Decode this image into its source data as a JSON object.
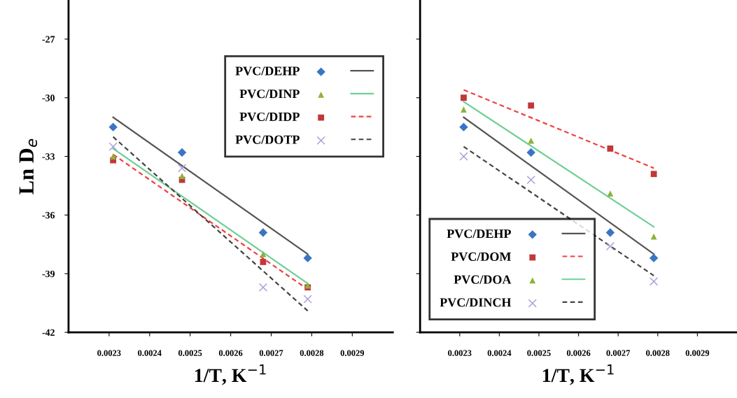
{
  "chart_data": [
    {
      "type": "scatter",
      "xlabel": "1/T, K$^{−1}$",
      "ylabel": "Ln D$_{e}$",
      "xlim": [
        0.0022,
        0.003
      ],
      "ylim": [
        -42,
        -25
      ],
      "xticks": [
        {
          "value": 0.0023,
          "label": "0.0023"
        },
        {
          "value": 0.0024,
          "label": "0.0024"
        },
        {
          "value": 0.0025,
          "label": "0.0025"
        },
        {
          "value": 0.0026,
          "label": "0.0026"
        },
        {
          "value": 0.0027,
          "label": "0.0027"
        },
        {
          "value": 0.0028,
          "label": "0.0028"
        },
        {
          "value": 0.0029,
          "label": "0.0029"
        }
      ],
      "yticks": [
        -42,
        -39,
        -36,
        -33,
        -30,
        -27
      ],
      "grid": false,
      "legend": "top right",
      "series": [
        {
          "name": "PVC/DEHP",
          "color": "#3a75c4",
          "marker": "diamond",
          "x": [
            0.00231,
            0.00248,
            0.00268,
            0.00279
          ],
          "values": [
            -31.5,
            -32.8,
            -36.9,
            -38.2
          ]
        },
        {
          "name": "PVC/DINP",
          "color": "#8db33a",
          "marker": "triangle",
          "x": [
            0.00231,
            0.00248,
            0.00268,
            0.00279
          ],
          "values": [
            -33.0,
            -34.0,
            -38.0,
            -39.6
          ]
        },
        {
          "name": "PVC/DIDP",
          "color": "#c0383a",
          "marker": "square",
          "x": [
            0.00231,
            0.00248,
            0.00268,
            0.00279
          ],
          "values": [
            -33.2,
            -34.2,
            -38.4,
            -39.7
          ]
        },
        {
          "name": "PVC/DOTP",
          "color": "#a99ad6",
          "marker": "cross",
          "x": [
            0.00231,
            0.00248,
            0.00268,
            0.00279
          ],
          "values": [
            -32.5,
            -33.6,
            -39.7,
            -40.3
          ]
        },
        {
          "type": "line",
          "color": "#555555",
          "line_style": "solid",
          "x": [
            0.00231,
            0.00279
          ],
          "values": [
            -31.0,
            -38.0
          ]
        },
        {
          "type": "line",
          "color": "#6fcf97",
          "line_style": "solid",
          "x": [
            0.00231,
            0.00279
          ],
          "values": [
            -32.6,
            -39.5
          ]
        },
        {
          "type": "line",
          "color": "#f04040",
          "line_style": "dashed",
          "x": [
            0.00231,
            0.00279
          ],
          "values": [
            -32.9,
            -39.8
          ]
        },
        {
          "type": "line",
          "color": "#444444",
          "line_style": "dashed",
          "x": [
            0.00231,
            0.00279
          ],
          "values": [
            -32.0,
            -40.9
          ]
        }
      ]
    },
    {
      "type": "scatter",
      "xlabel": "1/T, K$^{−1}$",
      "xlim": [
        0.0022,
        0.003
      ],
      "ylim": [
        -42,
        -25
      ],
      "tick_labels": "x",
      "xticks": [
        {
          "value": 0.0023,
          "label": "0.0023"
        },
        {
          "value": 0.0024,
          "label": "0.0024"
        },
        {
          "value": 0.0025,
          "label": "0.0025"
        },
        {
          "value": 0.0026,
          "label": "0.0026"
        },
        {
          "value": 0.0027,
          "label": "0.0027"
        },
        {
          "value": 0.0028,
          "label": "0.0028"
        },
        {
          "value": 0.0029,
          "label": "0.0029"
        }
      ],
      "yticks": [
        {
          "value": -42,
          "label": null
        },
        {
          "value": -39,
          "label": null
        },
        {
          "value": -36,
          "label": null
        },
        {
          "value": -33,
          "label": null
        },
        {
          "value": -30,
          "label": null
        },
        {
          "value": -27,
          "label": null
        }
      ],
      "grid": false,
      "legend": "bottom left",
      "series": [
        {
          "name": "PVC/DEHP",
          "color": "#3a75c4",
          "marker": "diamond",
          "x": [
            0.00231,
            0.00248,
            0.00268,
            0.00279
          ],
          "values": [
            -31.5,
            -32.8,
            -36.9,
            -38.2
          ]
        },
        {
          "name": "PVC/DOM",
          "color": "#c0383a",
          "marker": "square",
          "x": [
            0.00231,
            0.00248,
            0.00268,
            0.00279
          ],
          "values": [
            -30.0,
            -30.4,
            -32.6,
            -33.9
          ]
        },
        {
          "name": "PVC/DOA",
          "color": "#8db33a",
          "marker": "triangle",
          "x": [
            0.00231,
            0.00248,
            0.00268,
            0.00279
          ],
          "values": [
            -30.6,
            -32.2,
            -34.9,
            -37.1
          ]
        },
        {
          "name": "PVC/DINCH",
          "color": "#a99ad6",
          "marker": "cross",
          "x": [
            0.00231,
            0.00248,
            0.00268,
            0.00279
          ],
          "values": [
            -33.0,
            -34.2,
            -37.6,
            -39.4
          ]
        },
        {
          "type": "line",
          "color": "#555555",
          "line_style": "solid",
          "x": [
            0.00231,
            0.00279
          ],
          "values": [
            -31.0,
            -38.0
          ]
        },
        {
          "type": "line",
          "color": "#f04040",
          "line_style": "dashed",
          "x": [
            0.00231,
            0.00279
          ],
          "values": [
            -29.6,
            -33.6
          ]
        },
        {
          "type": "line",
          "color": "#6fcf97",
          "line_style": "solid",
          "x": [
            0.00231,
            0.00279
          ],
          "values": [
            -30.2,
            -36.6
          ]
        },
        {
          "type": "line",
          "color": "#444444",
          "line_style": "dashed",
          "x": [
            0.00231,
            0.00279
          ],
          "values": [
            -32.5,
            -39.1
          ]
        }
      ]
    }
  ]
}
